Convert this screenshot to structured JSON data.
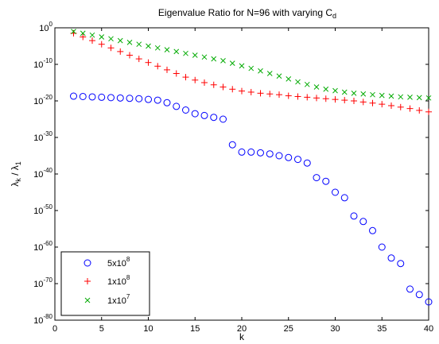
{
  "chart_data": {
    "type": "scatter",
    "title": "Eigenvalue Ratio for N=96 with varying C",
    "title_subscript": "d",
    "xlabel": "k",
    "ylabel": {
      "part1": "λ",
      "part1_sub": "k",
      "sep": " / ",
      "part2": "λ",
      "part2_sub": "1"
    },
    "xlim": [
      0,
      40
    ],
    "ylim_log10": [
      -80,
      0
    ],
    "y_scale": "log",
    "grid": false,
    "legend_position": "bottom-left",
    "x_ticks": [
      "0",
      "5",
      "10",
      "15",
      "20",
      "25",
      "30",
      "35",
      "40"
    ],
    "y_ticks": [
      {
        "base": "10",
        "exp": "0"
      },
      {
        "base": "10",
        "exp": "-10"
      },
      {
        "base": "10",
        "exp": "-20"
      },
      {
        "base": "10",
        "exp": "-30"
      },
      {
        "base": "10",
        "exp": "-40"
      },
      {
        "base": "10",
        "exp": "-50"
      },
      {
        "base": "10",
        "exp": "-60"
      },
      {
        "base": "10",
        "exp": "-70"
      },
      {
        "base": "10",
        "exp": "-80"
      }
    ],
    "series": [
      {
        "name_base": "5x10",
        "name_exp": "8",
        "marker": "circle",
        "color": "#0000ff",
        "x": [
          2,
          3,
          4,
          5,
          6,
          7,
          8,
          9,
          10,
          11,
          12,
          13,
          14,
          15,
          16,
          17,
          18,
          19,
          20,
          21,
          22,
          23,
          24,
          25,
          26,
          27,
          28,
          29,
          30,
          31,
          32,
          33,
          34,
          35,
          36,
          37,
          38,
          39,
          40
        ],
        "log10_y": [
          -18.7,
          -18.8,
          -18.9,
          -19.0,
          -19.1,
          -19.2,
          -19.3,
          -19.4,
          -19.6,
          -19.8,
          -20.5,
          -21.5,
          -22.5,
          -23.5,
          -24.0,
          -24.5,
          -25.0,
          -32.0,
          -34.0,
          -34.0,
          -34.2,
          -34.5,
          -35.0,
          -35.5,
          -36.0,
          -37.0,
          -41.0,
          -42.0,
          -45.0,
          -46.5,
          -51.5,
          -53.0,
          -55.5,
          -60.0,
          -63.0,
          -64.5,
          -71.5,
          -73.0,
          -75.0
        ]
      },
      {
        "name_base": "1x10",
        "name_exp": "8",
        "marker": "plus",
        "color": "#ff0000",
        "x": [
          2,
          3,
          4,
          5,
          6,
          7,
          8,
          9,
          10,
          11,
          12,
          13,
          14,
          15,
          16,
          17,
          18,
          19,
          20,
          21,
          22,
          23,
          24,
          25,
          26,
          27,
          28,
          29,
          30,
          31,
          32,
          33,
          34,
          35,
          36,
          37,
          38,
          39,
          40
        ],
        "log10_y": [
          -1.5,
          -2.5,
          -3.5,
          -4.5,
          -5.5,
          -6.5,
          -7.5,
          -8.5,
          -9.5,
          -10.5,
          -11.5,
          -12.5,
          -13.5,
          -14.3,
          -15.0,
          -15.6,
          -16.2,
          -16.8,
          -17.3,
          -17.6,
          -17.9,
          -18.1,
          -18.3,
          -18.6,
          -18.8,
          -19.0,
          -19.2,
          -19.4,
          -19.6,
          -19.8,
          -20.0,
          -20.3,
          -20.6,
          -20.9,
          -21.3,
          -21.7,
          -22.1,
          -22.6,
          -23.0
        ]
      },
      {
        "name_base": "1x10",
        "name_exp": "7",
        "marker": "x",
        "color": "#00aa00",
        "x": [
          2,
          3,
          4,
          5,
          6,
          7,
          8,
          9,
          10,
          11,
          12,
          13,
          14,
          15,
          16,
          17,
          18,
          19,
          20,
          21,
          22,
          23,
          24,
          25,
          26,
          27,
          28,
          29,
          30,
          31,
          32,
          33,
          34,
          35,
          36,
          37,
          38,
          39,
          40
        ],
        "log10_y": [
          -1.0,
          -1.5,
          -2.0,
          -2.5,
          -3.0,
          -3.5,
          -4.0,
          -4.5,
          -5.0,
          -5.5,
          -6.0,
          -6.5,
          -7.0,
          -7.5,
          -8.0,
          -8.5,
          -9.0,
          -9.7,
          -10.4,
          -11.1,
          -11.8,
          -12.5,
          -13.2,
          -14.0,
          -14.8,
          -15.5,
          -16.2,
          -16.8,
          -17.2,
          -17.6,
          -17.9,
          -18.1,
          -18.3,
          -18.5,
          -18.7,
          -18.9,
          -19.0,
          -19.1,
          -19.2
        ]
      }
    ]
  }
}
